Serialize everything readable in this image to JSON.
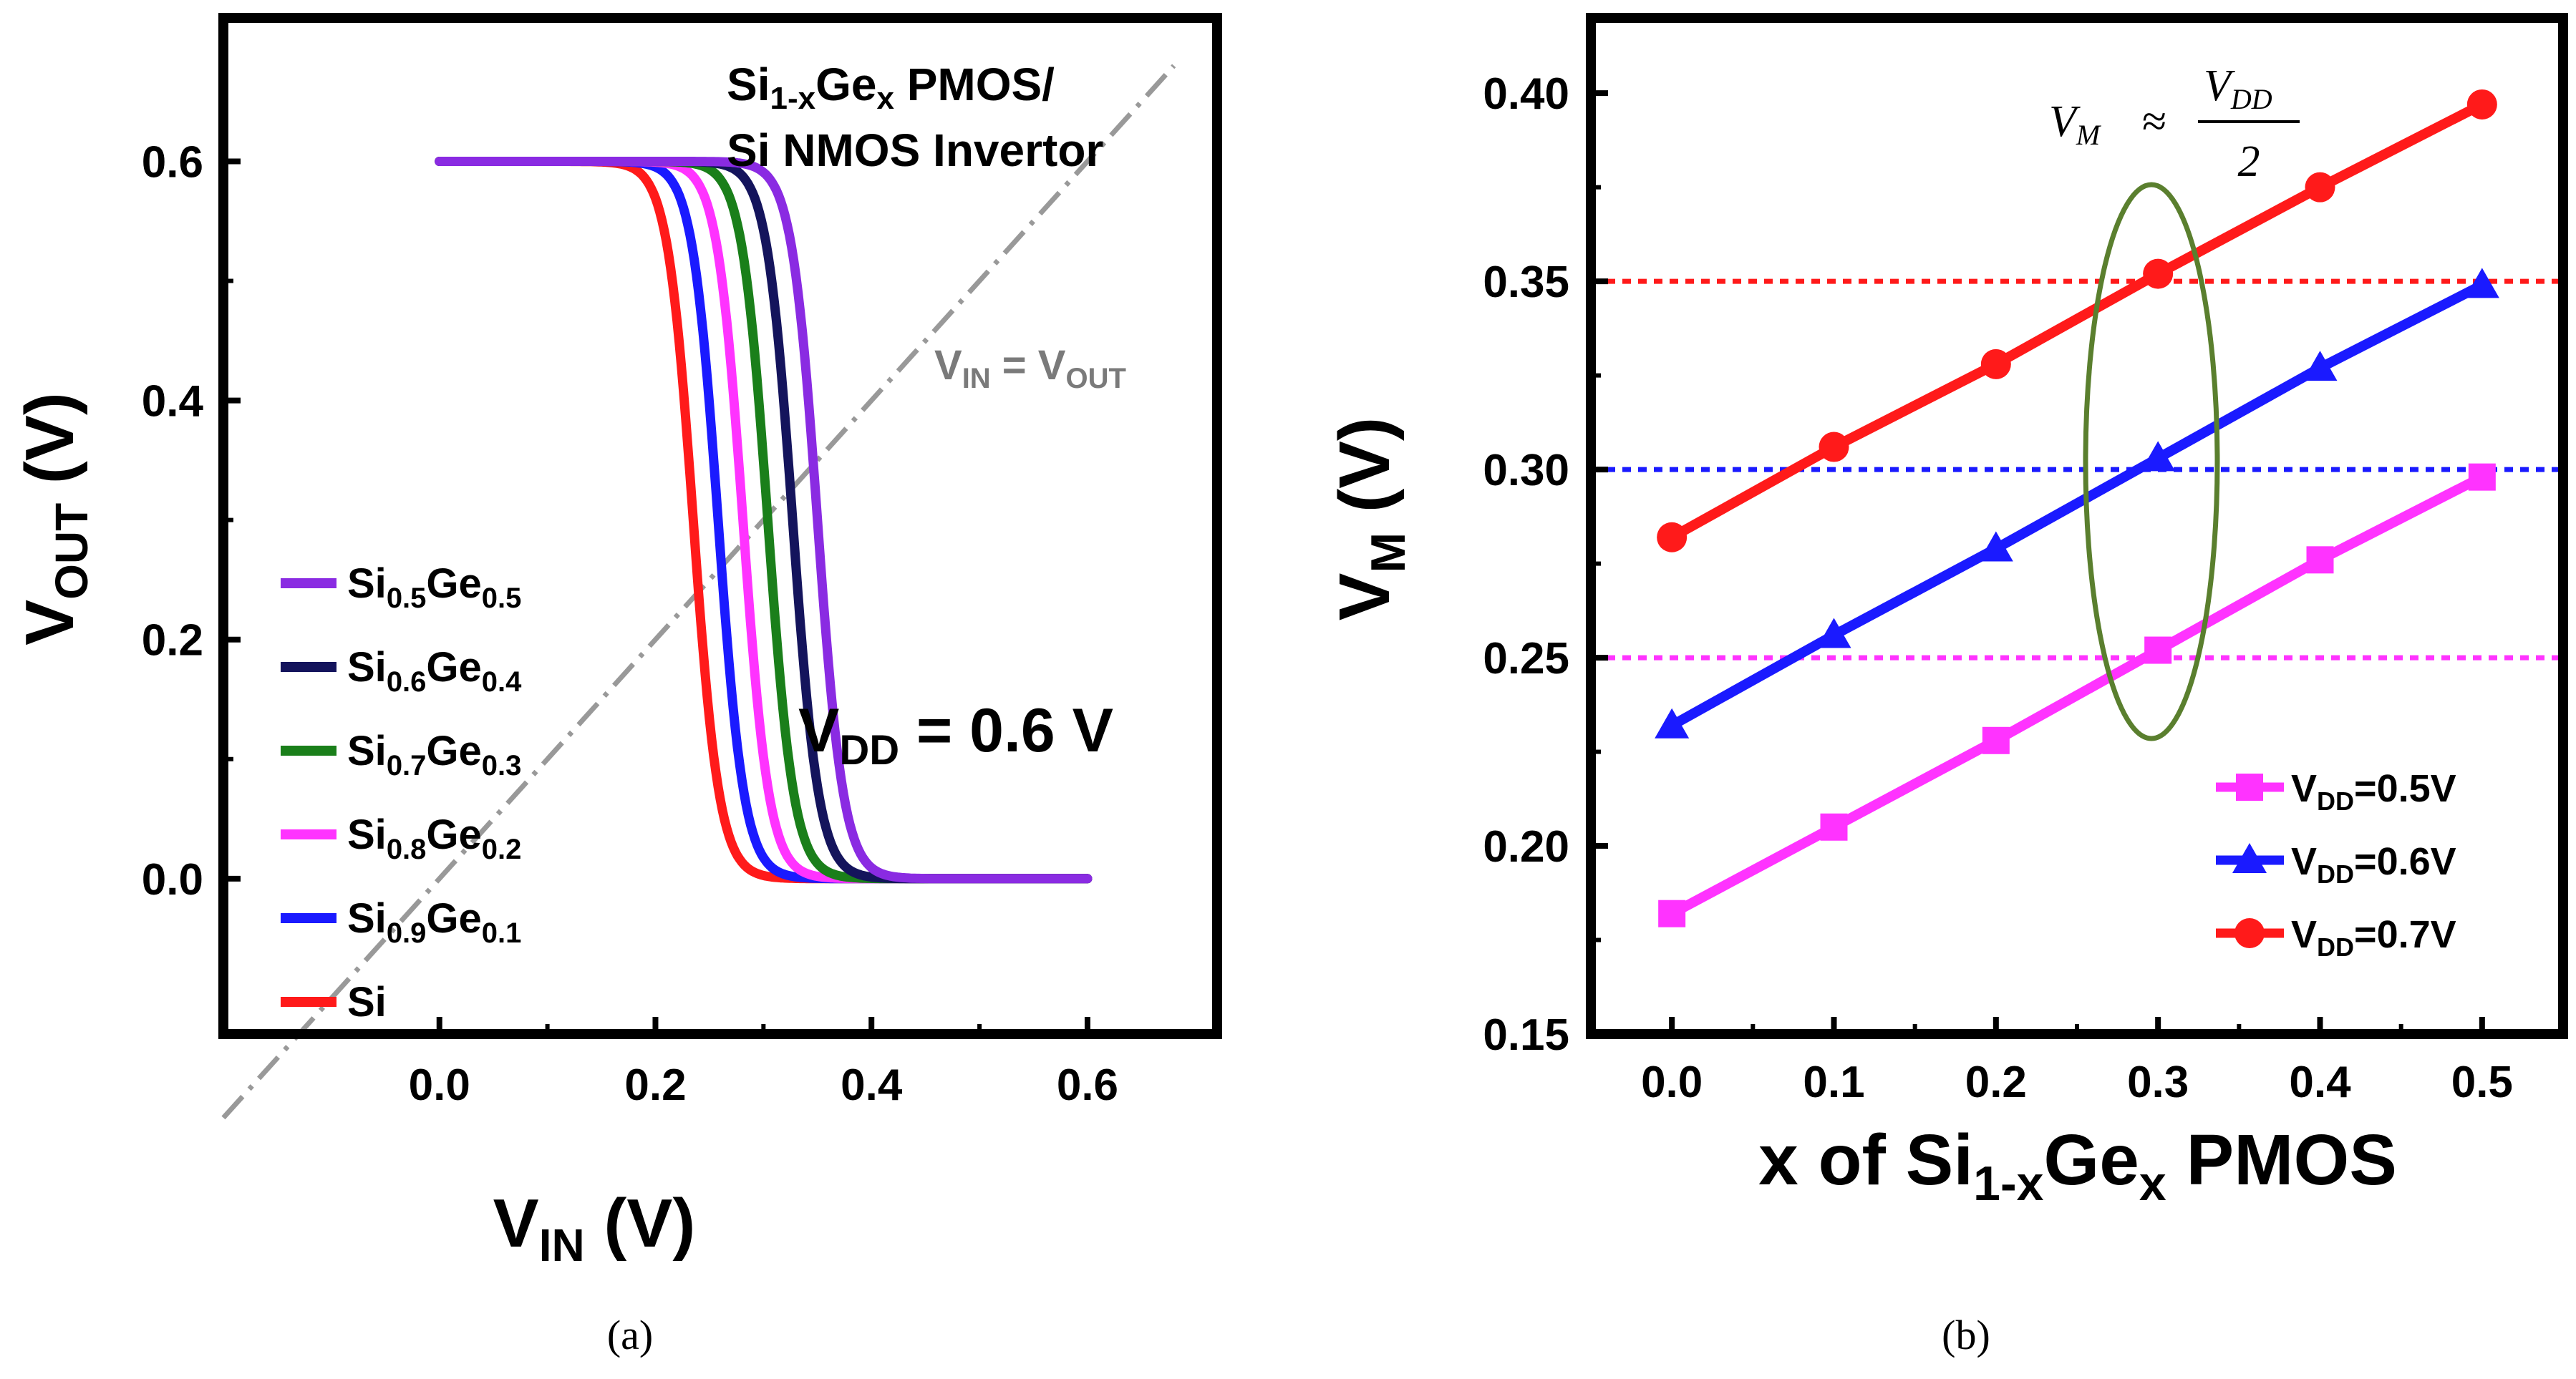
{
  "chart_data": [
    {
      "panel": "a",
      "type": "line",
      "caption": "(a)",
      "title_line1": {
        "main": "Si",
        "sub1": "1-x",
        "mid": "Ge",
        "sub2": "x",
        "tail": " PMOS/"
      },
      "title_line2": "Si NMOS Invertor",
      "xlabel": {
        "main": "V",
        "sub": "IN",
        "unit": " (V)"
      },
      "ylabel": {
        "main": "V",
        "sub": "OUT",
        "unit": " (V)"
      },
      "xlim": [
        -0.2,
        0.72
      ],
      "ylim": [
        -0.13,
        0.72
      ],
      "xticks": [
        "0.0",
        "0.2",
        "0.4",
        "0.6"
      ],
      "yticks": [
        "0.0",
        "0.2",
        "0.4",
        "0.6"
      ],
      "vdd_label": {
        "main": "V",
        "sub": "DD",
        "tail": " = 0.6 V"
      },
      "reference_line": {
        "left": "V",
        "left_sub": "IN",
        "mid": " = V",
        "right_sub": "OUT"
      },
      "series": [
        {
          "name": "Si0.5Ge0.5",
          "si": "Si",
          "si_sub": "0.5",
          "ge": "Ge",
          "ge_sub": "0.5",
          "color": "#8a2be2",
          "vm": 0.35
        },
        {
          "name": "Si0.6Ge0.4",
          "si": "Si",
          "si_sub": "0.6",
          "ge": "Ge",
          "ge_sub": "0.4",
          "color": "#14145c",
          "vm": 0.327
        },
        {
          "name": "Si0.7Ge0.3",
          "si": "Si",
          "si_sub": "0.7",
          "ge": "Ge",
          "ge_sub": "0.3",
          "color": "#1a7f1a",
          "vm": 0.304
        },
        {
          "name": "Si0.8Ge0.2",
          "si": "Si",
          "si_sub": "0.8",
          "ge": "Ge",
          "ge_sub": "0.2",
          "color": "#ff33ff",
          "vm": 0.281
        },
        {
          "name": "Si0.9Ge0.1",
          "si": "Si",
          "si_sub": "0.9",
          "ge": "Ge",
          "ge_sub": "0.1",
          "color": "#1a1aff",
          "vm": 0.258
        },
        {
          "name": "Si",
          "si": "Si",
          "si_sub": "",
          "ge": "",
          "ge_sub": "",
          "color": "#ff1a1a",
          "vm": 0.235
        }
      ]
    },
    {
      "panel": "b",
      "type": "line",
      "caption": "(b)",
      "xlabel": {
        "pre": "x of Si",
        "sub1": "1-x",
        "mid": "Ge",
        "sub2": "x",
        "tail": " PMOS"
      },
      "ylabel": {
        "main": "V",
        "sub": "M",
        "unit": " (V)"
      },
      "xlim": [
        -0.05,
        0.55
      ],
      "ylim": [
        0.15,
        0.42
      ],
      "xticks": [
        "0.0",
        "0.1",
        "0.2",
        "0.3",
        "0.4",
        "0.5"
      ],
      "yticks": [
        "0.15",
        "0.20",
        "0.25",
        "0.30",
        "0.35",
        "0.40"
      ],
      "x": [
        0.0,
        0.1,
        0.2,
        0.3,
        0.4,
        0.5
      ],
      "annotation": {
        "lhs": "V",
        "lhs_sub": "M",
        "approx": "≈",
        "num": "V",
        "num_sub": "DD",
        "den": "2"
      },
      "reference_lines": [
        {
          "y": 0.35,
          "color": "#ff1a1a"
        },
        {
          "y": 0.3,
          "color": "#1a1aff"
        },
        {
          "y": 0.25,
          "color": "#ff33ff"
        }
      ],
      "series": [
        {
          "name": "VDD=0.5V",
          "label_main": "V",
          "label_sub": "DD",
          "label_tail": "=0.5V",
          "marker": "square",
          "color": "#ff33ff",
          "values": [
            0.182,
            0.205,
            0.228,
            0.252,
            0.276,
            0.298
          ]
        },
        {
          "name": "VDD=0.6V",
          "label_main": "V",
          "label_sub": "DD",
          "label_tail": "=0.6V",
          "marker": "triangle",
          "color": "#1a1aff",
          "values": [
            0.232,
            0.256,
            0.279,
            0.303,
            0.327,
            0.349
          ]
        },
        {
          "name": "VDD=0.7V",
          "label_main": "V",
          "label_sub": "DD",
          "label_tail": "=0.7V",
          "marker": "circle",
          "color": "#ff1a1a",
          "values": [
            0.282,
            0.306,
            0.328,
            0.352,
            0.375,
            0.397
          ]
        }
      ]
    }
  ]
}
